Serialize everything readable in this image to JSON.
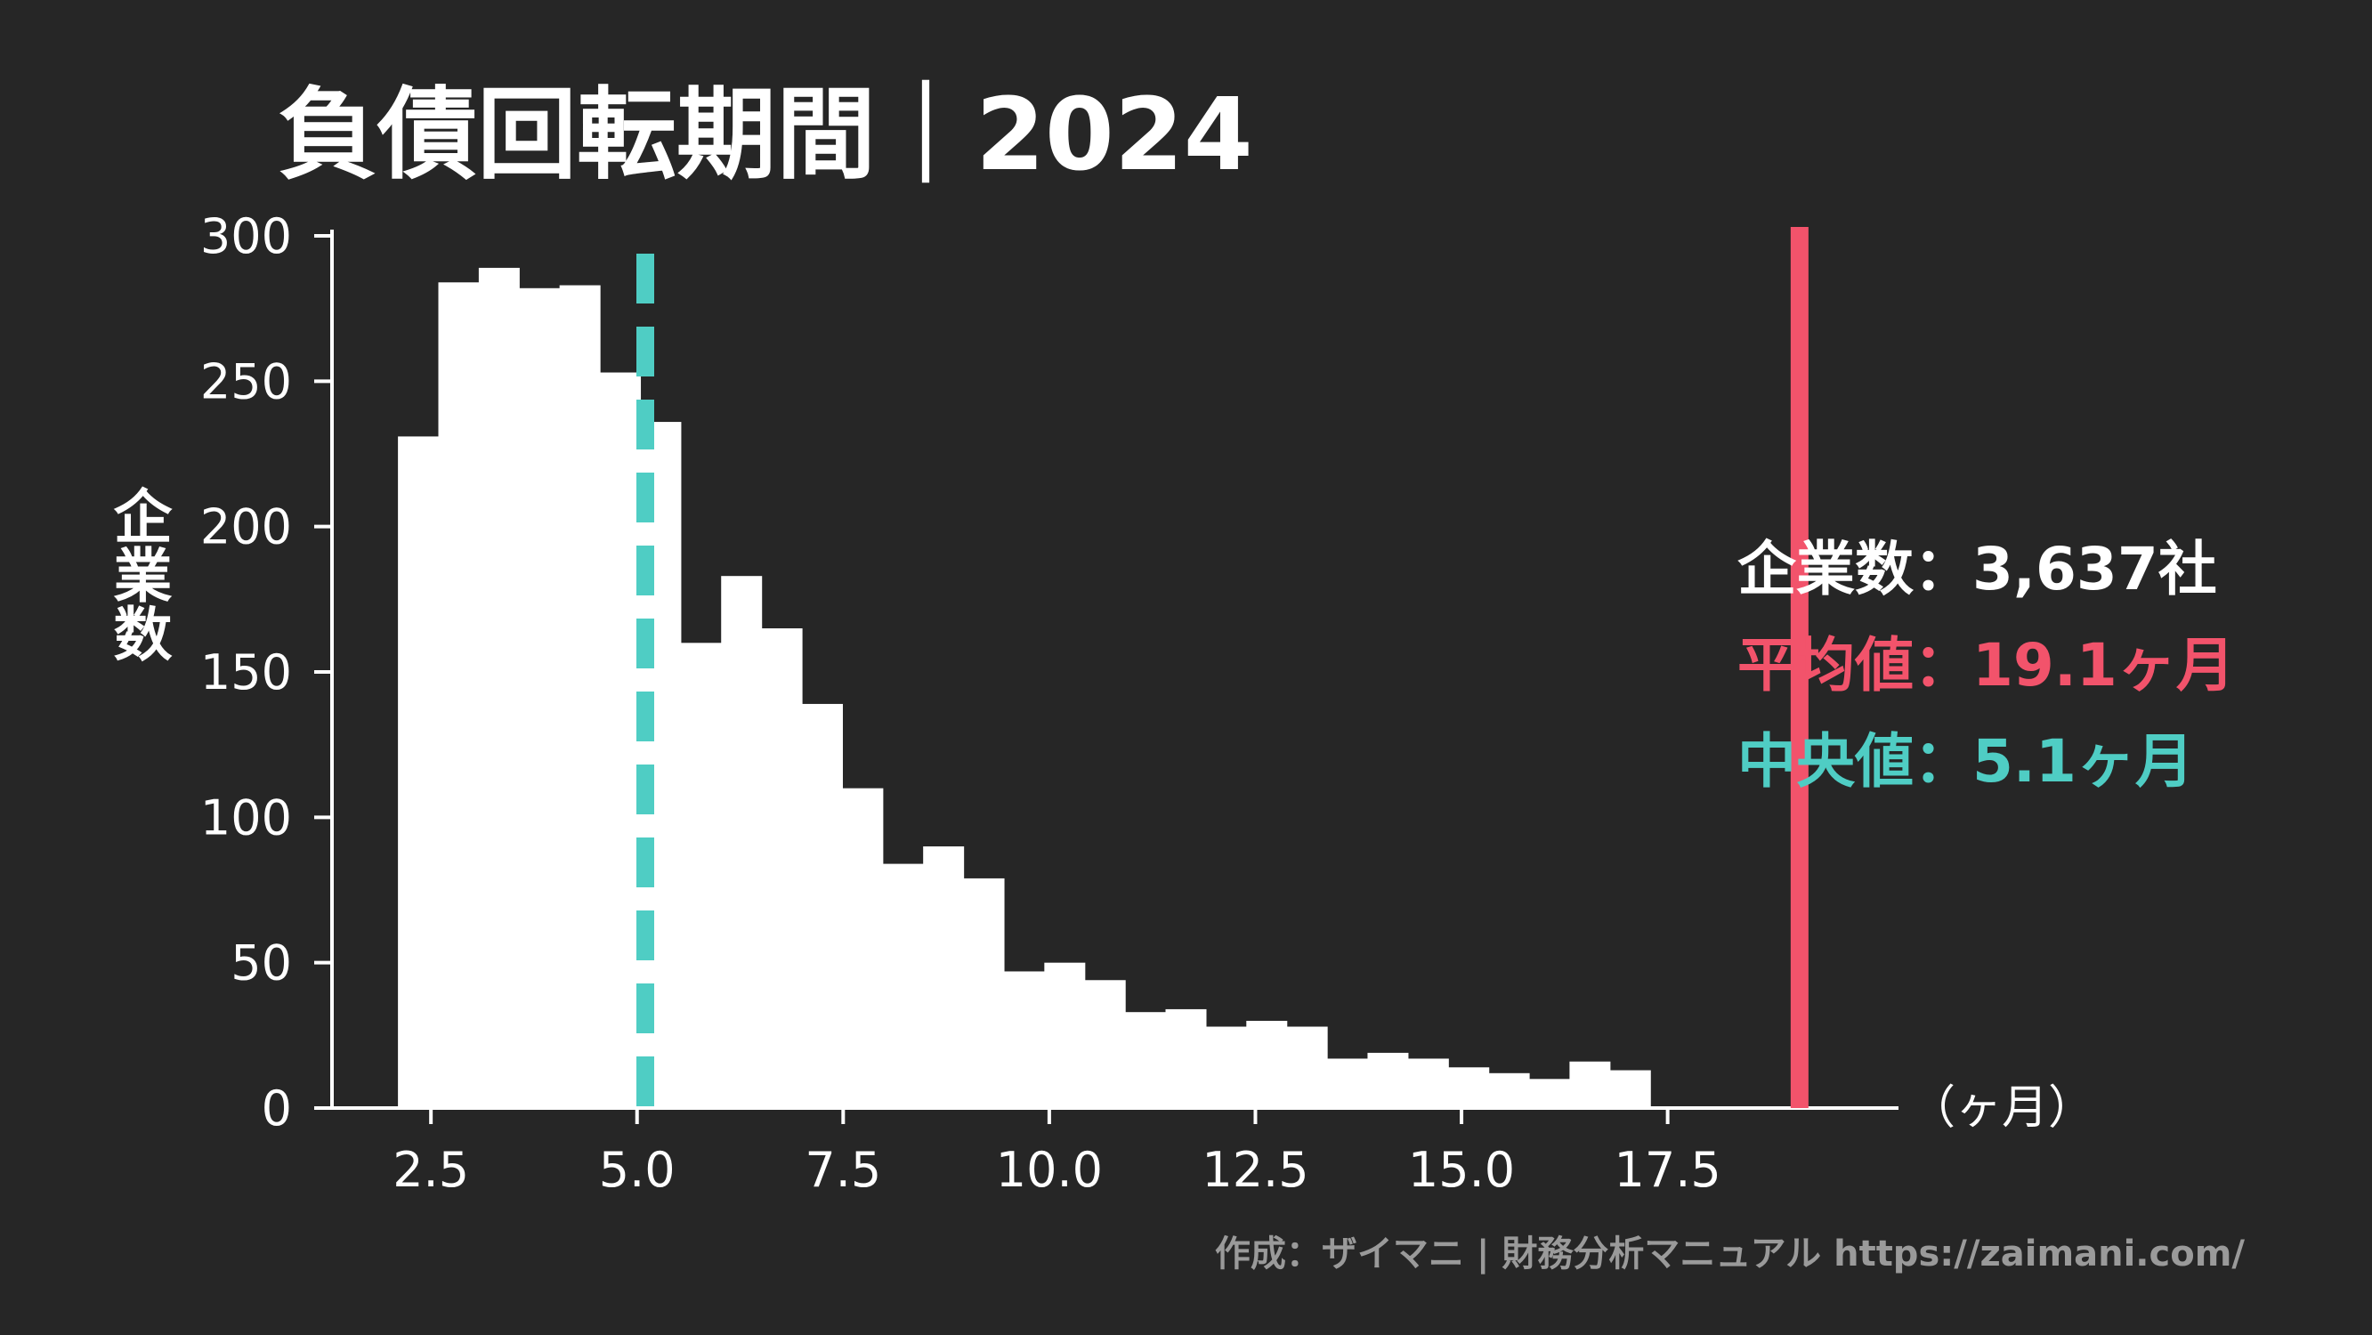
{
  "colors": {
    "background": "#262626",
    "bars": "#ffffff",
    "axis": "#ffffff",
    "mean": "#f2536b",
    "median": "#4fcdc4",
    "credit": "#9a9a9a"
  },
  "chart_data": {
    "type": "bar",
    "title": "負債回転期間｜2024",
    "ylabel": "企業数",
    "xunit": "（ヶ月）",
    "xlim": [
      1.3,
      20.3
    ],
    "ylim": [
      0,
      300
    ],
    "xticks": [
      2.5,
      5.0,
      7.5,
      10.0,
      12.5,
      15.0,
      17.5
    ],
    "xtick_labels": [
      "2.5",
      "5.0",
      "7.5",
      "10.0",
      "12.5",
      "15.0",
      "17.5"
    ],
    "yticks": [
      0,
      50,
      100,
      150,
      200,
      250,
      300
    ],
    "ytick_labels": [
      "0",
      "50",
      "100",
      "150",
      "200",
      "250",
      "300"
    ],
    "grid": false,
    "bin_start": 2.1,
    "bin_width": 0.49,
    "values": [
      231,
      284,
      289,
      282,
      283,
      253,
      236,
      160,
      183,
      165,
      139,
      110,
      84,
      90,
      79,
      47,
      50,
      44,
      33,
      34,
      28,
      30,
      28,
      17,
      19,
      17,
      14,
      12,
      10,
      16,
      13
    ],
    "mean": 19.1,
    "median": 5.1,
    "annotations": {
      "count": "企業数：3,637社",
      "mean": "平均値：19.1ヶ月",
      "median": "中央値：5.1ヶ月"
    },
    "credit": "作成：ザイマニ | 財務分析マニュアル https://zaimani.com/"
  }
}
